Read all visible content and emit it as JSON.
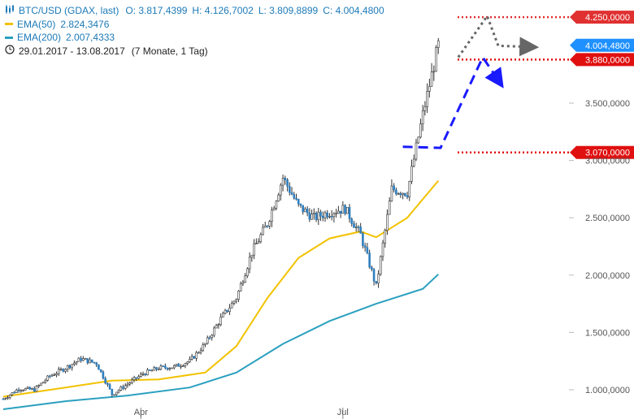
{
  "legend": {
    "title": "BTC/USD (GDAX, last)",
    "ohlc": {
      "open": "O: 3.817,4399",
      "high": "H: 4.126,7002",
      "low": "L: 3.809,8899",
      "close": "C: 4.004,4800"
    },
    "ema50": {
      "label": "EMA(50)",
      "value": "2.824,3476",
      "color": "#f2c200"
    },
    "ema200": {
      "label": "EMA(200)",
      "value": "2.007,4333",
      "color": "#2aa0bf"
    },
    "period": "29.01.2017 - 13.08.2017",
    "span": "(7 Monate, 1 Tag)",
    "chart_icon": "candles-icon",
    "clock_icon": "clock-icon"
  },
  "chart_data": {
    "type": "candlestick",
    "ylim": [
      900,
      4350
    ],
    "y_ticks": [
      {
        "value": 1000,
        "label": "1.000,0000"
      },
      {
        "value": 1500,
        "label": "1.500,0000"
      },
      {
        "value": 2000,
        "label": "2.000,0000"
      },
      {
        "value": 2500,
        "label": "2.500,0000"
      },
      {
        "value": 3000,
        "label": "3.000,0000"
      },
      {
        "value": 3500,
        "label": "3.500,0000"
      }
    ],
    "x_ticks": [
      {
        "date": "2017-04-01",
        "label": "Apr"
      },
      {
        "date": "2017-07-01",
        "label": "Jul"
      }
    ],
    "date_range": [
      "2017-01-29",
      "2017-08-13"
    ],
    "candle_color": "#2f7fbf",
    "wick_color": "#333333",
    "close_series": [
      {
        "date": "2017-01-29",
        "close": 920
      },
      {
        "date": "2017-02-05",
        "close": 1010
      },
      {
        "date": "2017-02-12",
        "close": 1000
      },
      {
        "date": "2017-02-19",
        "close": 1120
      },
      {
        "date": "2017-02-26",
        "close": 1190
      },
      {
        "date": "2017-03-05",
        "close": 1270
      },
      {
        "date": "2017-03-12",
        "close": 1230
      },
      {
        "date": "2017-03-19",
        "close": 960
      },
      {
        "date": "2017-03-26",
        "close": 1050
      },
      {
        "date": "2017-04-02",
        "close": 1140
      },
      {
        "date": "2017-04-09",
        "close": 1190
      },
      {
        "date": "2017-04-16",
        "close": 1200
      },
      {
        "date": "2017-04-23",
        "close": 1250
      },
      {
        "date": "2017-04-30",
        "close": 1400
      },
      {
        "date": "2017-05-07",
        "close": 1620
      },
      {
        "date": "2017-05-14",
        "close": 1800
      },
      {
        "date": "2017-05-21",
        "close": 2200
      },
      {
        "date": "2017-05-28",
        "close": 2450
      },
      {
        "date": "2017-06-04",
        "close": 2850
      },
      {
        "date": "2017-06-11",
        "close": 2600
      },
      {
        "date": "2017-06-18",
        "close": 2500
      },
      {
        "date": "2017-06-25",
        "close": 2550
      },
      {
        "date": "2017-07-02",
        "close": 2580
      },
      {
        "date": "2017-07-09",
        "close": 2350
      },
      {
        "date": "2017-07-16",
        "close": 1900
      },
      {
        "date": "2017-07-23",
        "close": 2750
      },
      {
        "date": "2017-07-30",
        "close": 2720
      },
      {
        "date": "2017-08-06",
        "close": 3400
      },
      {
        "date": "2017-08-13",
        "close": 4004
      }
    ],
    "ema50_series": [
      {
        "date": "2017-01-29",
        "value": 940
      },
      {
        "date": "2017-02-26",
        "value": 1020
      },
      {
        "date": "2017-03-19",
        "value": 1080
      },
      {
        "date": "2017-04-09",
        "value": 1090
      },
      {
        "date": "2017-04-30",
        "value": 1150
      },
      {
        "date": "2017-05-14",
        "value": 1380
      },
      {
        "date": "2017-05-28",
        "value": 1800
      },
      {
        "date": "2017-06-11",
        "value": 2150
      },
      {
        "date": "2017-06-25",
        "value": 2320
      },
      {
        "date": "2017-07-09",
        "value": 2380
      },
      {
        "date": "2017-07-16",
        "value": 2330
      },
      {
        "date": "2017-07-30",
        "value": 2500
      },
      {
        "date": "2017-08-13",
        "value": 2824
      }
    ],
    "ema200_series": [
      {
        "date": "2017-01-29",
        "value": 830
      },
      {
        "date": "2017-02-26",
        "value": 900
      },
      {
        "date": "2017-03-26",
        "value": 950
      },
      {
        "date": "2017-04-23",
        "value": 1020
      },
      {
        "date": "2017-05-14",
        "value": 1150
      },
      {
        "date": "2017-06-04",
        "value": 1400
      },
      {
        "date": "2017-06-25",
        "value": 1600
      },
      {
        "date": "2017-07-16",
        "value": 1750
      },
      {
        "date": "2017-08-06",
        "value": 1880
      },
      {
        "date": "2017-08-13",
        "value": 2007
      }
    ],
    "levels": [
      {
        "value": 4250,
        "label": "4.250,0000",
        "color": "#e03030",
        "style": "dotted"
      },
      {
        "value": 4004.48,
        "label": "4.004,4800",
        "color": "#1e90ff",
        "style": "none"
      },
      {
        "value": 3880,
        "label": "3.880,0000",
        "color": "#e01010",
        "style": "dotted"
      },
      {
        "value": 3070,
        "label": "3.070,0000",
        "color": "#e01010",
        "style": "dotted"
      }
    ],
    "scenarios": [
      {
        "name": "",
        "color": "#1a1aff",
        "style": "dashed",
        "points": [
          {
            "date": "2017-07-28",
            "value": 3120
          },
          {
            "date": "2017-08-14",
            "value": 3110
          },
          {
            "date": "2017-09-02",
            "value": 3900
          },
          {
            "date": "2017-09-09",
            "value": 3700
          }
        ]
      },
      {
        "name": "",
        "color": "#666666",
        "style": "dotted",
        "points": [
          {
            "date": "2017-08-22",
            "value": 3900
          },
          {
            "date": "2017-09-04",
            "value": 4260
          },
          {
            "date": "2017-09-09",
            "value": 4000
          },
          {
            "date": "2017-09-23",
            "value": 3990
          }
        ]
      }
    ]
  }
}
